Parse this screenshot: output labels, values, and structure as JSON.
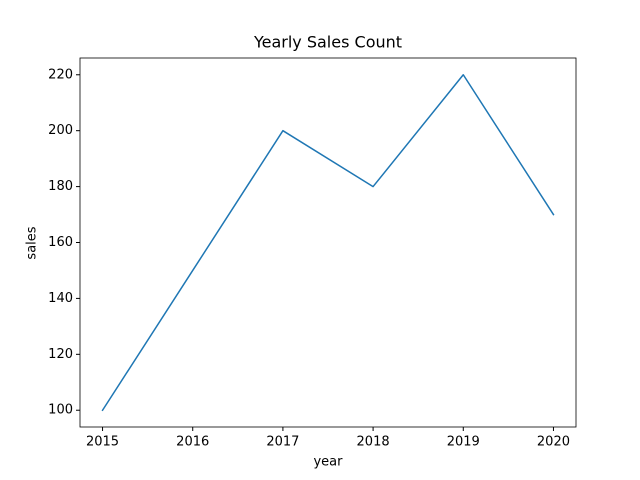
{
  "chart_data": {
    "type": "line",
    "title": "Yearly Sales Count",
    "x_label": "year",
    "y_label": "sales",
    "x": [
      2015,
      2016,
      2017,
      2018,
      2019,
      2020
    ],
    "series": [
      {
        "name": "sales",
        "color": "#1f77b4",
        "values": [
          100,
          150,
          200,
          180,
          220,
          170
        ]
      }
    ],
    "xlim": [
      2014.75,
      2020.25
    ],
    "xticks": [
      2015,
      2016,
      2017,
      2018,
      2019,
      2020
    ],
    "ylim": [
      94,
      226
    ],
    "yticks": [
      100,
      120,
      140,
      160,
      180,
      200,
      220
    ],
    "grid": false
  }
}
